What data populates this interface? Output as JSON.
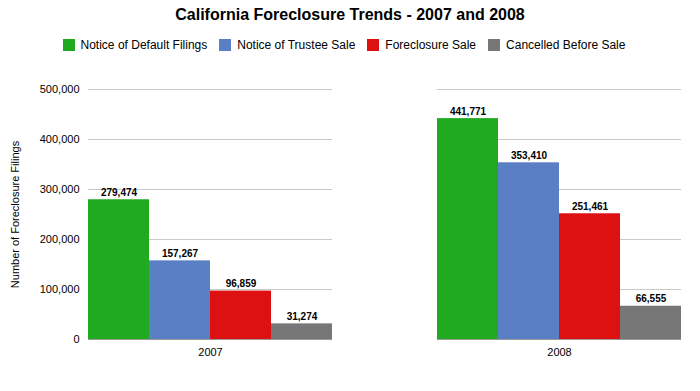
{
  "chart_data": {
    "type": "bar",
    "title": "California Foreclosure Trends - 2007 and 2008",
    "ylabel": "Number of Foreclosure Filings",
    "categories": [
      "2007",
      "2008"
    ],
    "series": [
      {
        "name": "Notice of Default Filings",
        "color": "#1faa1f",
        "values": [
          279474,
          441771
        ],
        "value_labels": [
          "279,474",
          "441,771"
        ]
      },
      {
        "name": "Notice of Trustee Sale",
        "color": "#5b7fc4",
        "values": [
          157267,
          353410
        ],
        "value_labels": [
          "157,267",
          "353,410"
        ]
      },
      {
        "name": "Foreclosure Sale",
        "color": "#dd1111",
        "values": [
          96859,
          251461
        ],
        "value_labels": [
          "96,859",
          "251,461"
        ]
      },
      {
        "name": "Cancelled Before Sale",
        "color": "#777777",
        "values": [
          31274,
          66555
        ],
        "value_labels": [
          "31,274",
          "66,555"
        ]
      }
    ],
    "ylim": [
      0,
      500000
    ],
    "yticks": [
      0,
      {
        "value": 100000,
        "label": "100,000"
      },
      {
        "value": 200000,
        "label": "200,000"
      },
      {
        "value": 300000,
        "label": "300,000"
      },
      {
        "value": 400000,
        "label": "400,000"
      },
      {
        "value": 500000,
        "label": "500,000"
      }
    ],
    "grid": true,
    "legend": "top",
    "data_labels": true
  }
}
